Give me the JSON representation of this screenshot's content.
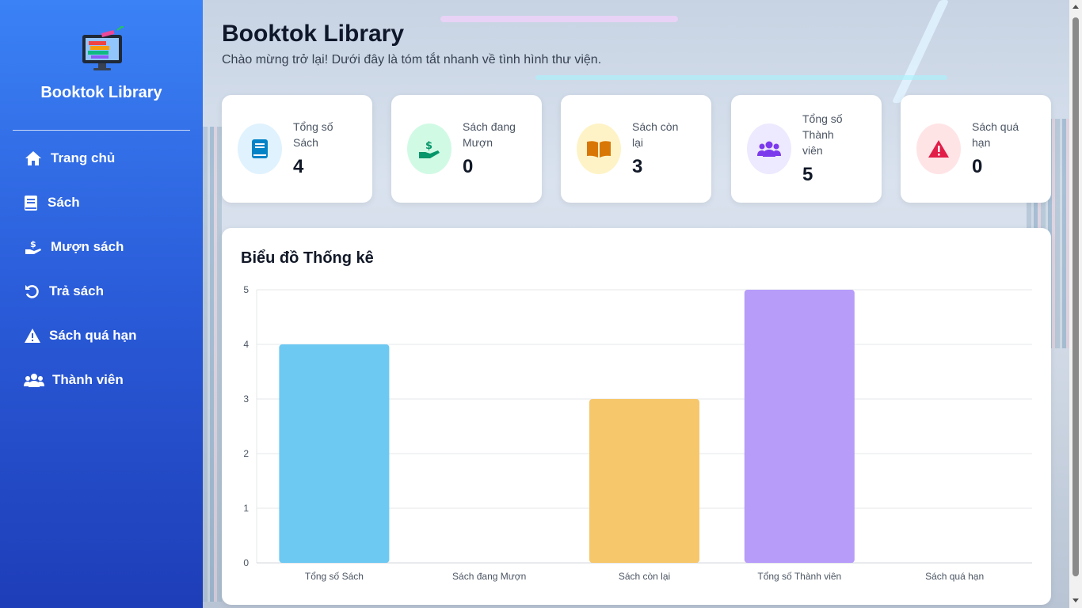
{
  "sidebar": {
    "brand": "Booktok Library",
    "items": [
      {
        "label": "Trang chủ",
        "icon": "home-icon"
      },
      {
        "label": "Sách",
        "icon": "book-icon"
      },
      {
        "label": "Mượn sách",
        "icon": "hand-holding-dollar-icon"
      },
      {
        "label": "Trả sách",
        "icon": "undo-icon"
      },
      {
        "label": "Sách quá hạn",
        "icon": "warning-icon"
      },
      {
        "label": "Thành viên",
        "icon": "users-icon"
      }
    ]
  },
  "header": {
    "title": "Booktok Library",
    "subtitle": "Chào mừng trở lại! Dưới đây là tóm tắt nhanh về tình hình thư viện."
  },
  "stats": [
    {
      "label_lines": [
        "Tổng số",
        "Sách"
      ],
      "value": "4",
      "icon": "book-icon",
      "color": "#0284c7",
      "bg": "#e0f2fe"
    },
    {
      "label_lines": [
        "Sách đang",
        "Mượn"
      ],
      "value": "0",
      "icon": "hand-holding-dollar-icon",
      "color": "#059669",
      "bg": "#d1fae5"
    },
    {
      "label_lines": [
        "Sách còn",
        "lại"
      ],
      "value": "3",
      "icon": "book-open-icon",
      "color": "#d97706",
      "bg": "#fef3c7"
    },
    {
      "label_lines": [
        "Tổng số",
        "Thành",
        "viên"
      ],
      "value": "5",
      "icon": "users-icon",
      "color": "#7c3aed",
      "bg": "#ede9fe"
    },
    {
      "label_lines": [
        "Sách quá",
        "hạn"
      ],
      "value": "0",
      "icon": "warning-icon",
      "color": "#e11d48",
      "bg": "#ffe4e6"
    }
  ],
  "chart_title": "Biểu đồ Thống kê",
  "chart_data": {
    "type": "bar",
    "categories": [
      "Tổng số Sách",
      "Sách đang Mượn",
      "Sách còn lại",
      "Tổng số Thành viên",
      "Sách quá hạn"
    ],
    "values": [
      4,
      0,
      3,
      5,
      0
    ],
    "colors": [
      "#6ec9f2",
      "#6ee0b0",
      "#f7c76b",
      "#b79cf9",
      "#fb8fa3"
    ],
    "yticks": [
      0,
      1,
      2,
      3,
      4,
      5
    ],
    "ylim": [
      0,
      5
    ],
    "grid": true
  }
}
